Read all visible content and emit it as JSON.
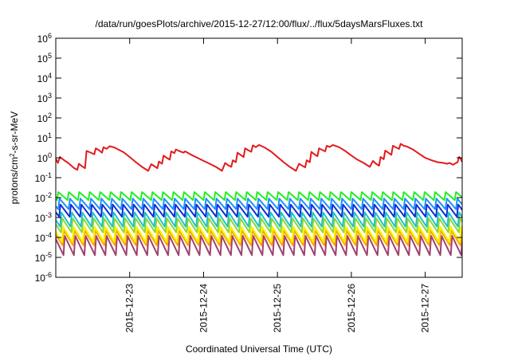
{
  "chart_data": {
    "type": "line",
    "title": "/data/run/goesPlots/archive/2015-12-27/12:00/flux/../flux/5daysMarsFluxes.txt",
    "xlabel": "Coordinated Universal Time (UTC)",
    "ylabel_main": "protons/cm",
    "ylabel_sup": "2",
    "ylabel_rest": "-s-sr-MeV",
    "y_scale": "log",
    "ylim": [
      1e-06,
      1000000.0
    ],
    "xlim": [
      "2015-12-22T00:00",
      "2015-12-27T12:00"
    ],
    "grid": false,
    "legend": "none",
    "y_ticks": [
      {
        "value": 1e-06,
        "base": "10",
        "exp": "-6"
      },
      {
        "value": 1e-05,
        "base": "10",
        "exp": "-5"
      },
      {
        "value": 0.0001,
        "base": "10",
        "exp": "-4"
      },
      {
        "value": 0.001,
        "base": "10",
        "exp": "-3"
      },
      {
        "value": 0.01,
        "base": "10",
        "exp": "-2"
      },
      {
        "value": 0.1,
        "base": "10",
        "exp": "-1"
      },
      {
        "value": 1,
        "base": "10",
        "exp": "0"
      },
      {
        "value": 10,
        "base": "10",
        "exp": "1"
      },
      {
        "value": 100,
        "base": "10",
        "exp": "2"
      },
      {
        "value": 1000,
        "base": "10",
        "exp": "3"
      },
      {
        "value": 10000,
        "base": "10",
        "exp": "4"
      },
      {
        "value": 100000,
        "base": "10",
        "exp": "5"
      },
      {
        "value": 1000000,
        "base": "10",
        "exp": "6"
      }
    ],
    "x_ticks": [
      {
        "t": "2015-12-23T00:00",
        "label": "2015-12-23"
      },
      {
        "t": "2015-12-24T00:00",
        "label": "2015-12-24"
      },
      {
        "t": "2015-12-25T00:00",
        "label": "2015-12-25"
      },
      {
        "t": "2015-12-26T00:00",
        "label": "2015-12-26"
      },
      {
        "t": "2015-12-27T00:00",
        "label": "2015-12-27"
      }
    ],
    "series": [
      {
        "color": "#e41a1c",
        "points": [
          [
            "2015-12-22T00:00",
            0.9
          ],
          [
            "2015-12-22T00:40",
            0.55
          ],
          [
            "2015-12-22T01:20",
            1.1
          ],
          [
            "2015-12-22T02:00",
            0.9
          ],
          [
            "2015-12-22T04:00",
            0.55
          ],
          [
            "2015-12-22T06:00",
            0.3
          ],
          [
            "2015-12-22T07:00",
            0.25
          ],
          [
            "2015-12-22T07:30",
            0.5
          ],
          [
            "2015-12-22T08:30",
            0.38
          ],
          [
            "2015-12-22T09:30",
            0.3
          ],
          [
            "2015-12-22T10:00",
            2.2
          ],
          [
            "2015-12-22T11:00",
            1.9
          ],
          [
            "2015-12-22T12:30",
            1.5
          ],
          [
            "2015-12-22T13:00",
            3.0
          ],
          [
            "2015-12-22T14:00",
            2.4
          ],
          [
            "2015-12-22T15:00",
            1.8
          ],
          [
            "2015-12-22T15:30",
            3.4
          ],
          [
            "2015-12-22T16:30",
            2.8
          ],
          [
            "2015-12-22T17:30",
            3.8
          ],
          [
            "2015-12-22T19:00",
            3.3
          ],
          [
            "2015-12-22T22:00",
            1.9
          ],
          [
            "2015-12-23T00:00",
            1.1
          ],
          [
            "2015-12-23T02:00",
            0.6
          ],
          [
            "2015-12-23T04:00",
            0.35
          ],
          [
            "2015-12-23T06:00",
            0.22
          ],
          [
            "2015-12-23T07:00",
            0.48
          ],
          [
            "2015-12-23T08:00",
            0.38
          ],
          [
            "2015-12-23T09:00",
            0.3
          ],
          [
            "2015-12-23T09:30",
            0.65
          ],
          [
            "2015-12-23T10:30",
            0.5
          ],
          [
            "2015-12-23T11:00",
            1.3
          ],
          [
            "2015-12-23T12:00",
            1.0
          ],
          [
            "2015-12-23T13:00",
            0.8
          ],
          [
            "2015-12-23T13:30",
            2.1
          ],
          [
            "2015-12-23T14:30",
            1.7
          ],
          [
            "2015-12-23T15:00",
            2.6
          ],
          [
            "2015-12-23T16:00",
            2.2
          ],
          [
            "2015-12-23T17:30",
            1.8
          ],
          [
            "2015-12-23T18:00",
            2.1
          ],
          [
            "2015-12-23T20:00",
            1.4
          ],
          [
            "2015-12-23T22:00",
            1.0
          ],
          [
            "2015-12-24T00:00",
            0.7
          ],
          [
            "2015-12-24T02:00",
            0.5
          ],
          [
            "2015-12-24T04:00",
            0.35
          ],
          [
            "2015-12-24T06:00",
            0.22
          ],
          [
            "2015-12-24T07:00",
            0.55
          ],
          [
            "2015-12-24T08:00",
            0.42
          ],
          [
            "2015-12-24T09:00",
            0.35
          ],
          [
            "2015-12-24T09:30",
            0.75
          ],
          [
            "2015-12-24T10:30",
            0.6
          ],
          [
            "2015-12-24T11:00",
            1.8
          ],
          [
            "2015-12-24T12:00",
            1.4
          ],
          [
            "2015-12-24T13:00",
            1.1
          ],
          [
            "2015-12-24T13:30",
            3.0
          ],
          [
            "2015-12-24T14:30",
            2.4
          ],
          [
            "2015-12-24T15:30",
            2.0
          ],
          [
            "2015-12-24T16:00",
            4.2
          ],
          [
            "2015-12-24T17:00",
            3.4
          ],
          [
            "2015-12-24T18:00",
            4.4
          ],
          [
            "2015-12-24T20:00",
            3.2
          ],
          [
            "2015-12-24T22:00",
            2.0
          ],
          [
            "2015-12-25T00:00",
            1.1
          ],
          [
            "2015-12-25T02:00",
            0.6
          ],
          [
            "2015-12-25T04:00",
            0.35
          ],
          [
            "2015-12-25T06:00",
            0.22
          ],
          [
            "2015-12-25T07:00",
            0.5
          ],
          [
            "2015-12-25T08:00",
            0.4
          ],
          [
            "2015-12-25T09:00",
            0.33
          ],
          [
            "2015-12-25T09:30",
            0.75
          ],
          [
            "2015-12-25T10:30",
            0.6
          ],
          [
            "2015-12-25T11:00",
            2.0
          ],
          [
            "2015-12-25T12:00",
            1.5
          ],
          [
            "2015-12-25T13:00",
            1.2
          ],
          [
            "2015-12-25T13:30",
            3.0
          ],
          [
            "2015-12-25T14:30",
            2.5
          ],
          [
            "2015-12-25T15:30",
            2.1
          ],
          [
            "2015-12-25T16:00",
            4.0
          ],
          [
            "2015-12-25T17:00",
            3.5
          ],
          [
            "2015-12-25T18:00",
            4.4
          ],
          [
            "2015-12-25T20:00",
            3.4
          ],
          [
            "2015-12-25T22:00",
            2.2
          ],
          [
            "2015-12-26T00:00",
            1.3
          ],
          [
            "2015-12-26T02:00",
            0.8
          ],
          [
            "2015-12-26T04:00",
            0.55
          ],
          [
            "2015-12-26T06:00",
            0.35
          ],
          [
            "2015-12-26T07:00",
            0.7
          ],
          [
            "2015-12-26T08:00",
            0.5
          ],
          [
            "2015-12-26T09:00",
            0.4
          ],
          [
            "2015-12-26T09:30",
            1.1
          ],
          [
            "2015-12-26T10:30",
            0.85
          ],
          [
            "2015-12-26T11:00",
            2.3
          ],
          [
            "2015-12-26T12:00",
            1.8
          ],
          [
            "2015-12-26T13:00",
            1.4
          ],
          [
            "2015-12-26T13:30",
            4.0
          ],
          [
            "2015-12-26T14:30",
            3.3
          ],
          [
            "2015-12-26T15:30",
            2.8
          ],
          [
            "2015-12-26T16:00",
            5.0
          ],
          [
            "2015-12-26T17:00",
            4.0
          ],
          [
            "2015-12-26T18:00",
            3.7
          ],
          [
            "2015-12-26T20:00",
            2.6
          ],
          [
            "2015-12-26T22:00",
            1.6
          ],
          [
            "2015-12-27T00:00",
            1.0
          ],
          [
            "2015-12-27T02:00",
            0.75
          ],
          [
            "2015-12-27T04:00",
            0.6
          ],
          [
            "2015-12-27T06:00",
            0.55
          ],
          [
            "2015-12-27T07:00",
            0.5
          ],
          [
            "2015-12-27T08:00",
            0.55
          ],
          [
            "2015-12-27T09:00",
            0.45
          ],
          [
            "2015-12-27T10:30",
            0.6
          ],
          [
            "2015-12-27T11:00",
            1.1
          ],
          [
            "2015-12-27T11:30",
            0.9
          ],
          [
            "2015-12-27T12:00",
            0.6
          ]
        ]
      },
      {
        "color": "#22ee22",
        "sawtooth": {
          "high": 0.019,
          "low": 0.0075,
          "period_hours": 3.4,
          "phase_hours": 0.4
        }
      },
      {
        "color": "#1f8fff",
        "sawtooth": {
          "high": 0.009,
          "low": 0.0026,
          "period_hours": 3.4,
          "phase_hours": 0.8
        }
      },
      {
        "color": "#0b2fd6",
        "sawtooth": {
          "high": 0.0045,
          "low": 0.0011,
          "period_hours": 3.4,
          "phase_hours": 1.1
        }
      },
      {
        "color": "#22c4c4",
        "sawtooth": {
          "high": 0.0018,
          "low": 0.00035,
          "period_hours": 3.4,
          "phase_hours": 1.4
        }
      },
      {
        "color": "#8fd63a",
        "sawtooth": {
          "high": 0.0009,
          "low": 0.00018,
          "period_hours": 3.4,
          "phase_hours": 1.7
        }
      },
      {
        "color": "#f5f500",
        "sawtooth": {
          "high": 0.00035,
          "low": 6e-05,
          "period_hours": 3.4,
          "phase_hours": 2.0
        }
      },
      {
        "color": "#ffa500",
        "sawtooth": {
          "high": 0.00022,
          "low": 4e-05,
          "period_hours": 3.4,
          "phase_hours": 2.2
        }
      },
      {
        "color": "#a0406e",
        "sawtooth": {
          "high": 0.00012,
          "low": 1.3e-05,
          "period_hours": 3.4,
          "phase_hours": 2.5
        }
      }
    ]
  }
}
